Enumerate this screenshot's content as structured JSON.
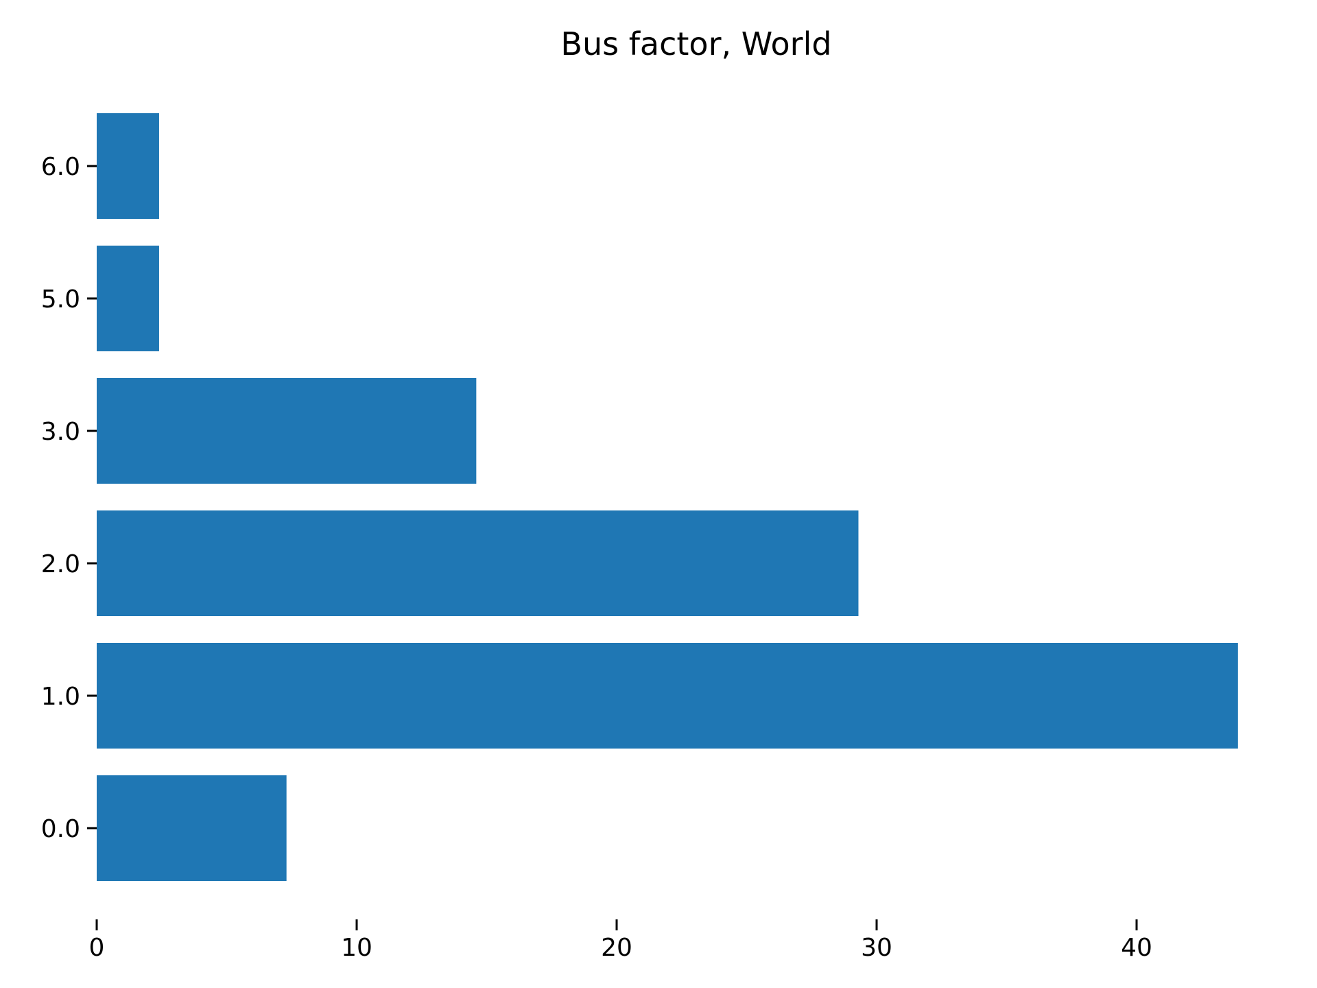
{
  "chart_data": {
    "type": "bar",
    "orientation": "horizontal",
    "title": "Bus factor, World",
    "xlabel": "",
    "ylabel": "",
    "categories": [
      "0.0",
      "1.0",
      "2.0",
      "3.0",
      "5.0",
      "6.0"
    ],
    "category_values": [
      0,
      1,
      2,
      3,
      5,
      6
    ],
    "values": [
      7.3,
      43.9,
      29.3,
      14.6,
      2.4,
      2.4
    ],
    "xlim": [
      0,
      46
    ],
    "x_ticks": [
      0,
      10,
      20,
      30,
      40
    ],
    "x_tick_labels": [
      "0",
      "10",
      "20",
      "30",
      "40"
    ],
    "grid": false,
    "bar_color": "#1f77b4"
  }
}
